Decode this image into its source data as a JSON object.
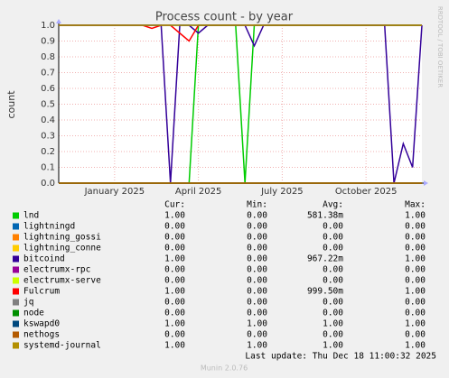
{
  "chart_data": {
    "type": "line",
    "title": "Process count - by year",
    "y_label": "count",
    "side_text": "RRDTOOL / TOBI OETIKER",
    "categories": [
      null,
      null,
      null,
      null,
      null,
      null,
      "January 2025",
      null,
      null,
      null,
      null,
      null,
      null,
      null,
      null,
      "April 2025",
      null,
      null,
      null,
      null,
      null,
      null,
      null,
      null,
      "July 2025",
      null,
      null,
      null,
      null,
      null,
      null,
      null,
      null,
      "October 2025",
      null,
      null,
      null,
      null,
      null,
      null
    ],
    "ylim": [
      0,
      1
    ],
    "yticks": [
      {
        "value": 0,
        "label": "0.0"
      },
      0.1,
      0.2,
      0.3,
      0.4,
      0.5,
      0.6,
      0.7,
      0.8,
      0.9,
      {
        "value": 1,
        "label": "1.0"
      }
    ],
    "grid": true,
    "series": [
      {
        "name": "lnd",
        "color": "#00cc00",
        "values": [
          0,
          0,
          0,
          0,
          0,
          0,
          0,
          0,
          0,
          0,
          0,
          0,
          0,
          0,
          0,
          1,
          1,
          1,
          1,
          1,
          0,
          1,
          1,
          1,
          1,
          1,
          1,
          1,
          1,
          1,
          1,
          1,
          1,
          1,
          1,
          1,
          1,
          1,
          1,
          1
        ]
      },
      {
        "name": "lightningd",
        "color": "#0066b3",
        "values": [
          0,
          0,
          0,
          0,
          0,
          0,
          0,
          0,
          0,
          0,
          0,
          0,
          0,
          0,
          0,
          0,
          0,
          0,
          0,
          0,
          0,
          0,
          0,
          0,
          0,
          0,
          0,
          0,
          0,
          0,
          0,
          0,
          0,
          0,
          0,
          0,
          0,
          0,
          0,
          0
        ]
      },
      {
        "name": "lightning_gossi",
        "color": "#ff8000",
        "values": [
          0,
          0,
          0,
          0,
          0,
          0,
          0,
          0,
          0,
          0,
          0,
          0,
          0,
          0,
          0,
          0,
          0,
          0,
          0,
          0,
          0,
          0,
          0,
          0,
          0,
          0,
          0,
          0,
          0,
          0,
          0,
          0,
          0,
          0,
          0,
          0,
          0,
          0,
          0,
          0
        ]
      },
      {
        "name": "lightning_conne",
        "color": "#ffcc00",
        "values": [
          0,
          0,
          0,
          0,
          0,
          0,
          0,
          0,
          0,
          0,
          0,
          0,
          0,
          0,
          0,
          0,
          0,
          0,
          0,
          0,
          0,
          0,
          0,
          0,
          0,
          0,
          0,
          0,
          0,
          0,
          0,
          0,
          0,
          0,
          0,
          0,
          0,
          0,
          0,
          0
        ]
      },
      {
        "name": "bitcoind",
        "color": "#330099",
        "values": [
          1,
          1,
          1,
          1,
          1,
          1,
          1,
          1,
          1,
          1,
          1,
          1,
          0,
          1,
          1,
          0.95,
          1,
          1,
          1,
          1,
          1,
          0.87,
          1,
          1,
          1,
          1,
          1,
          1,
          1,
          1,
          1,
          1,
          1,
          1,
          1,
          1,
          0,
          0.25,
          0.1,
          1
        ]
      },
      {
        "name": "electrumx-rpc",
        "color": "#990099",
        "values": [
          0,
          0,
          0,
          0,
          0,
          0,
          0,
          0,
          0,
          0,
          0,
          0,
          0,
          0,
          0,
          0,
          0,
          0,
          0,
          0,
          0,
          0,
          0,
          0,
          0,
          0,
          0,
          0,
          0,
          0,
          0,
          0,
          0,
          0,
          0,
          0,
          0,
          0,
          0,
          0
        ]
      },
      {
        "name": "electrumx-serve",
        "color": "#ccff00",
        "values": [
          0,
          0,
          0,
          0,
          0,
          0,
          0,
          0,
          0,
          0,
          0,
          0,
          0,
          0,
          0,
          0,
          0,
          0,
          0,
          0,
          0,
          0,
          0,
          0,
          0,
          0,
          0,
          0,
          0,
          0,
          0,
          0,
          0,
          0,
          0,
          0,
          0,
          0,
          0,
          0
        ]
      },
      {
        "name": "Fulcrum",
        "color": "#ff0000",
        "values": [
          1,
          1,
          1,
          1,
          1,
          1,
          1,
          1,
          1,
          1,
          0.98,
          1,
          1,
          0.95,
          0.9,
          1,
          1,
          1,
          1,
          1,
          1,
          1,
          1,
          1,
          1,
          1,
          1,
          1,
          1,
          1,
          1,
          1,
          1,
          1,
          1,
          1,
          1,
          1,
          1,
          1
        ]
      },
      {
        "name": "jq",
        "color": "#808080",
        "values": [
          0,
          0,
          0,
          0,
          0,
          0,
          0,
          0,
          0,
          0,
          0,
          0,
          0,
          0,
          0,
          0,
          0,
          0,
          0,
          0,
          0,
          0,
          0,
          0,
          0,
          0,
          0,
          0,
          0,
          0,
          0,
          0,
          0,
          0,
          0,
          0,
          0,
          0,
          0,
          0
        ]
      },
      {
        "name": "node",
        "color": "#008f00",
        "values": [
          0,
          0,
          0,
          0,
          0,
          0,
          0,
          0,
          0,
          0,
          0,
          0,
          0,
          0,
          0,
          0,
          0,
          0,
          0,
          0,
          0,
          0,
          0,
          0,
          0,
          0,
          0,
          0,
          0,
          0,
          0,
          0,
          0,
          0,
          0,
          0,
          0,
          0,
          0,
          0
        ]
      },
      {
        "name": "kswapd0",
        "color": "#00487d",
        "values": [
          1,
          1,
          1,
          1,
          1,
          1,
          1,
          1,
          1,
          1,
          1,
          1,
          1,
          1,
          1,
          1,
          1,
          1,
          1,
          1,
          1,
          1,
          1,
          1,
          1,
          1,
          1,
          1,
          1,
          1,
          1,
          1,
          1,
          1,
          1,
          1,
          1,
          1,
          1,
          1
        ]
      },
      {
        "name": "nethogs",
        "color": "#b35a00",
        "values": [
          0,
          0,
          0,
          0,
          0,
          0,
          0,
          0,
          0,
          0,
          0,
          0,
          0,
          0,
          0,
          0,
          0,
          0,
          0,
          0,
          0,
          0,
          0,
          0,
          0,
          0,
          0,
          0,
          0,
          0,
          0,
          0,
          0,
          0,
          0,
          0,
          0,
          0,
          0,
          0
        ]
      },
      {
        "name": "systemd-journal",
        "color": "#b38f00",
        "values": [
          1,
          1,
          1,
          1,
          1,
          1,
          1,
          1,
          1,
          1,
          1,
          1,
          1,
          1,
          1,
          1,
          1,
          1,
          1,
          1,
          1,
          1,
          1,
          1,
          1,
          1,
          1,
          1,
          1,
          1,
          1,
          1,
          1,
          1,
          1,
          1,
          1,
          1,
          1,
          1
        ]
      }
    ],
    "stats": {
      "headers": [
        "Cur:",
        "Min:",
        "Avg:",
        "Max:"
      ],
      "rows": [
        [
          "1.00",
          "0.00",
          "581.38m",
          "1.00"
        ],
        [
          "0.00",
          "0.00",
          "0.00",
          "0.00"
        ],
        [
          "0.00",
          "0.00",
          "0.00",
          "0.00"
        ],
        [
          "0.00",
          "0.00",
          "0.00",
          "0.00"
        ],
        [
          "1.00",
          "0.00",
          "967.22m",
          "1.00"
        ],
        [
          "0.00",
          "0.00",
          "0.00",
          "0.00"
        ],
        [
          "0.00",
          "0.00",
          "0.00",
          "0.00"
        ],
        [
          "1.00",
          "0.00",
          "999.50m",
          "1.00"
        ],
        [
          "0.00",
          "0.00",
          "0.00",
          "0.00"
        ],
        [
          "0.00",
          "0.00",
          "0.00",
          "0.00"
        ],
        [
          "1.00",
          "1.00",
          "1.00",
          "1.00"
        ],
        [
          "0.00",
          "0.00",
          "0.00",
          "0.00"
        ],
        [
          "1.00",
          "1.00",
          "1.00",
          "1.00"
        ]
      ]
    },
    "last_update": "Last update: Thu Dec 18 11:00:32 2025",
    "footer": "Munin 2.0.76"
  }
}
